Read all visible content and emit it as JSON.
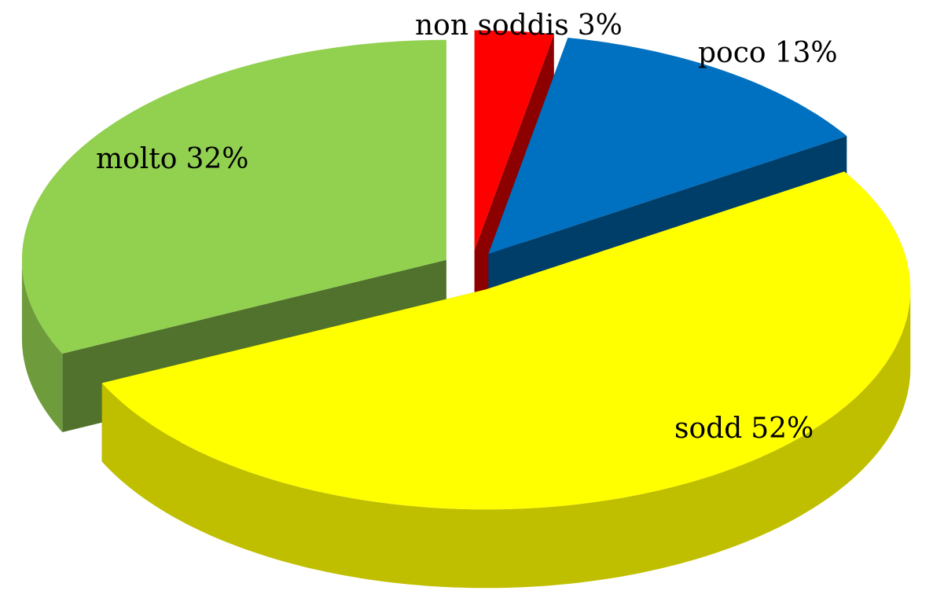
{
  "chart_data": {
    "type": "pie3d",
    "categories": [
      "non soddis",
      "poco",
      "sodd",
      "molto"
    ],
    "values": [
      3,
      13,
      52,
      32
    ],
    "value_labels": [
      "3%",
      "13%",
      "52%",
      "32%"
    ],
    "colors": [
      "#ff0000",
      "#0070c0",
      "#ffff00",
      "#92d050"
    ]
  }
}
